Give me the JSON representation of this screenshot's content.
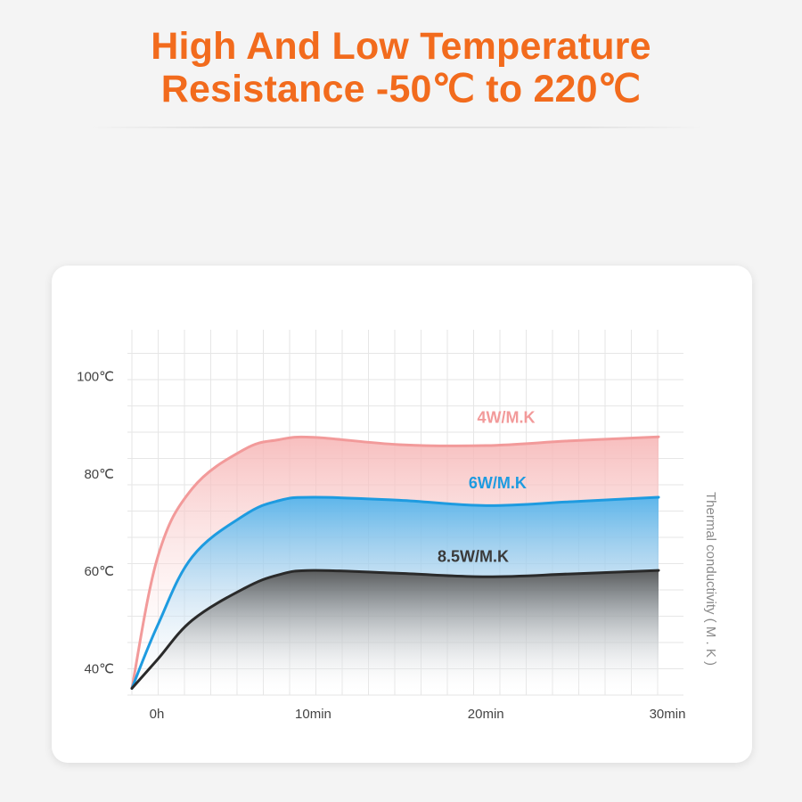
{
  "header": {
    "title_line1": "High And Low Temperature",
    "title_line2": "Resistance -50℃ to 220℃"
  },
  "chart_data": {
    "type": "area",
    "title": "High And Low Temperature Resistance -50℃ to 220℃",
    "xlabel": "",
    "ylabel": "Thermal conductivity ( M . K )",
    "x_ticks": [
      "0h",
      "10min",
      "20min",
      "30min"
    ],
    "y_ticks": [
      "100℃",
      "80℃",
      "60℃",
      "40℃"
    ],
    "x_tick_values": [
      0,
      10,
      20,
      30
    ],
    "y_tick_values": [
      100,
      80,
      60,
      40
    ],
    "xlim": [
      -0.5,
      30
    ],
    "ylim": [
      35,
      105
    ],
    "grid": true,
    "series": [
      {
        "name": "4W/M.K",
        "color": "#f29a9a",
        "fill": "#f6b3b3",
        "label_x": 19.5,
        "label_y": 90.5,
        "x": [
          -0.5,
          1,
          3,
          6,
          8,
          10,
          15,
          20,
          25,
          30
        ],
        "y": [
          36,
          63,
          77,
          85,
          87,
          87.5,
          86,
          85.8,
          86.8,
          87.6
        ]
      },
      {
        "name": "6W/M.K",
        "color": "#1e9be0",
        "fill": "#42b0ee",
        "label_x": 19,
        "label_y": 77,
        "x": [
          -0.5,
          1,
          3,
          6,
          8,
          10,
          15,
          20,
          25,
          30
        ],
        "y": [
          36,
          49,
          63,
          71.5,
          74.5,
          75.2,
          74.6,
          73.5,
          74.3,
          75.2
        ]
      },
      {
        "name": "8.5W/M.K",
        "color": "#2a2a2a",
        "fill": "#555555",
        "label_x": 17.2,
        "label_y": 62,
        "x": [
          -0.5,
          1,
          3,
          6,
          8,
          10,
          15,
          20,
          25,
          30
        ],
        "y": [
          36,
          42,
          50,
          56.5,
          59.3,
          60.2,
          59.6,
          58.9,
          59.5,
          60.2
        ]
      }
    ]
  }
}
